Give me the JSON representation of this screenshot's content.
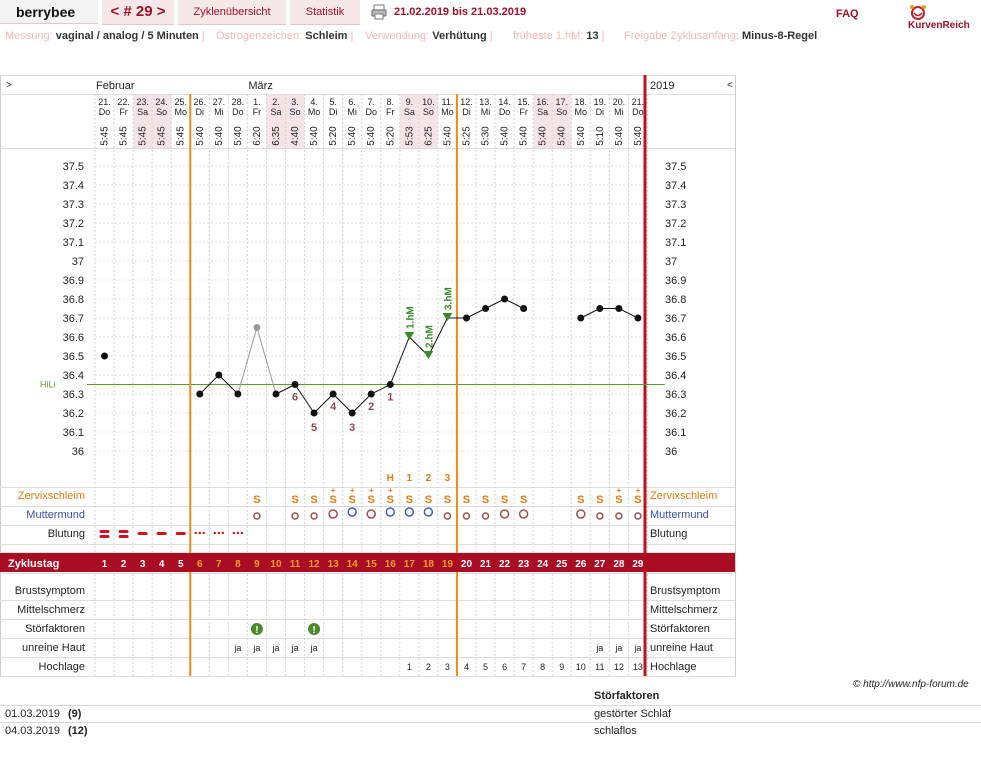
{
  "header": {
    "brand": "berrybee",
    "cycle_nav": "< # 29 >",
    "overview": "Zyklenübersicht",
    "statistics": "Statistik",
    "date_range": "21.02.2019 bis 21.03.2019",
    "faq": "FAQ",
    "logo_text": "KurvenReich"
  },
  "meta": [
    {
      "label": "Messung:",
      "value": "vaginal / analog / 5 Minuten"
    },
    {
      "label": "Östrogenzeichen:",
      "value": "Schleim"
    },
    {
      "label": "Verwendung:",
      "value": "Verhütung"
    },
    {
      "label": "früheste 1.hM:",
      "value": "13"
    },
    {
      "label": "Freigabe Zyklusanfang:",
      "value": "Minus-8-Regel"
    }
  ],
  "nav": {
    "left": ">",
    "right": "<",
    "year": "2019"
  },
  "months": [
    {
      "label": "Februar",
      "day_index": 0
    },
    {
      "label": "März",
      "day_index": 8
    }
  ],
  "days": [
    {
      "date": "21.",
      "wd": "Do",
      "time": "5:45",
      "cd": "1",
      "weekend": false
    },
    {
      "date": "22.",
      "wd": "Fr",
      "time": "5:45",
      "cd": "2",
      "weekend": false
    },
    {
      "date": "23.",
      "wd": "Sa",
      "time": "5:45",
      "cd": "3",
      "weekend": true
    },
    {
      "date": "24.",
      "wd": "So",
      "time": "5:45",
      "cd": "4",
      "weekend": true
    },
    {
      "date": "25.",
      "wd": "Mo",
      "time": "5:45",
      "cd": "5",
      "weekend": false
    },
    {
      "date": "26.",
      "wd": "Di",
      "time": "5:40",
      "cd": "6",
      "weekend": false
    },
    {
      "date": "27.",
      "wd": "Mi",
      "time": "5:40",
      "cd": "7",
      "weekend": false
    },
    {
      "date": "28.",
      "wd": "Do",
      "time": "5:40",
      "cd": "8",
      "weekend": false
    },
    {
      "date": "1.",
      "wd": "Fr",
      "time": "6:20",
      "cd": "9",
      "weekend": false
    },
    {
      "date": "2.",
      "wd": "Sa",
      "time": "6:35",
      "cd": "10",
      "weekend": true
    },
    {
      "date": "3.",
      "wd": "So",
      "time": "4:40",
      "cd": "11",
      "weekend": true
    },
    {
      "date": "4.",
      "wd": "Mo",
      "time": "5:40",
      "cd": "12",
      "weekend": false
    },
    {
      "date": "5.",
      "wd": "Di",
      "time": "5:20",
      "cd": "13",
      "weekend": false
    },
    {
      "date": "6.",
      "wd": "Mi",
      "time": "5:40",
      "cd": "14",
      "weekend": false
    },
    {
      "date": "7.",
      "wd": "Do",
      "time": "5:40",
      "cd": "15",
      "weekend": false
    },
    {
      "date": "8.",
      "wd": "Fr",
      "time": "5:20",
      "cd": "16",
      "weekend": false
    },
    {
      "date": "9.",
      "wd": "Sa",
      "time": "5:53",
      "cd": "17",
      "weekend": true
    },
    {
      "date": "10.",
      "wd": "So",
      "time": "6:25",
      "cd": "18",
      "weekend": true
    },
    {
      "date": "11.",
      "wd": "Mo",
      "time": "5:40",
      "cd": "19",
      "weekend": false
    },
    {
      "date": "12.",
      "wd": "Di",
      "time": "5:25",
      "cd": "20",
      "weekend": false
    },
    {
      "date": "13.",
      "wd": "Mi",
      "time": "5:30",
      "cd": "21",
      "weekend": false
    },
    {
      "date": "14.",
      "wd": "Do",
      "time": "5:40",
      "cd": "22",
      "weekend": false
    },
    {
      "date": "15.",
      "wd": "Fr",
      "time": "5:40",
      "cd": "23",
      "weekend": false
    },
    {
      "date": "16.",
      "wd": "Sa",
      "time": "5:40",
      "cd": "24",
      "weekend": true
    },
    {
      "date": "17.",
      "wd": "So",
      "time": "5:40",
      "cd": "25",
      "weekend": true
    },
    {
      "date": "18.",
      "wd": "Mo",
      "time": "5:40",
      "cd": "26",
      "weekend": false
    },
    {
      "date": "19.",
      "wd": "Di",
      "time": "5:10",
      "cd": "27",
      "weekend": false
    },
    {
      "date": "20.",
      "wd": "Mi",
      "time": "5:40",
      "cd": "28",
      "weekend": false
    },
    {
      "date": "21.",
      "wd": "Do",
      "time": "5:40",
      "cd": "29",
      "weekend": false
    }
  ],
  "chart_data": {
    "type": "line",
    "title": "",
    "xlabel": "",
    "ylabel": "",
    "ylim": [
      36.0,
      37.5
    ],
    "yticks": [
      "37.5",
      "37.4",
      "37.3",
      "37.2",
      "37.1",
      "37",
      "36.9",
      "36.8",
      "36.7",
      "36.6",
      "36.5",
      "36.4",
      "36.3",
      "36.2",
      "36.1",
      "36"
    ],
    "baseline_label": "HiLi",
    "baseline_value": 36.35,
    "grid": true,
    "series": [
      {
        "values": [
          36.5,
          null,
          null,
          null,
          null,
          36.3,
          36.4,
          36.3,
          36.65,
          36.3,
          36.35,
          36.2,
          36.3,
          36.2,
          36.3,
          36.35,
          36.6,
          36.5,
          36.7,
          36.7,
          36.75,
          36.8,
          36.75,
          null,
          null,
          36.7,
          36.75,
          36.75,
          36.7
        ]
      }
    ],
    "excluded_days": [
      8
    ],
    "low_labels": [
      {
        "day": 10,
        "label": "6"
      },
      {
        "day": 11,
        "label": "5"
      },
      {
        "day": 12,
        "label": "4"
      },
      {
        "day": 13,
        "label": "3"
      },
      {
        "day": 14,
        "label": "2"
      },
      {
        "day": 15,
        "label": "1"
      }
    ],
    "high_labels": [
      {
        "day": 16,
        "label": "1.hM"
      },
      {
        "day": 17,
        "label": "2.hM"
      },
      {
        "day": 18,
        "label": "3.hM"
      }
    ],
    "mucus_peak_labels": [
      {
        "day": 15,
        "label": "H"
      },
      {
        "day": 16,
        "label": "1"
      },
      {
        "day": 17,
        "label": "2"
      },
      {
        "day": 18,
        "label": "3"
      }
    ],
    "vertical_lines": [
      {
        "after_day": 4,
        "label": "fertile-start"
      },
      {
        "after_day": 18,
        "label": "fertile-end"
      }
    ]
  },
  "rows": {
    "zervix": "Zervixschleim",
    "muttermund": "Muttermund",
    "blutung": "Blutung",
    "zyklustag": "Zyklustag",
    "brust": "Brustsymptom",
    "mittel": "Mittelschmerz",
    "stoer": "Störfaktoren",
    "haut": "unreine Haut",
    "hoch": "Hochlage"
  },
  "zervix_marks": [
    "",
    "",
    "",
    "",
    "",
    "",
    "",
    "",
    "S",
    "",
    "S",
    "S",
    "S+",
    "S+",
    "S+",
    "S+",
    "S",
    "S",
    "S",
    "S",
    "S",
    "S",
    "S",
    "",
    "",
    "S",
    "S",
    "S+",
    "S+"
  ],
  "muttermund_marks": [
    "",
    "",
    "",
    "",
    "",
    "",
    "",
    "",
    "low",
    "",
    "low",
    "low",
    "mid",
    "high",
    "mid",
    "high",
    "high",
    "high",
    "low",
    "low",
    "low",
    "mid",
    "mid",
    "",
    "",
    "mid",
    "low",
    "low",
    "low"
  ],
  "bleeding": [
    "heavy",
    "heavy",
    "medium",
    "medium",
    "medium",
    "spot",
    "spot",
    "spot",
    "",
    "",
    "",
    "",
    "",
    "",
    "",
    "",
    "",
    "",
    "",
    "",
    "",
    "",
    "",
    "",
    "",
    "",
    "",
    "",
    ""
  ],
  "stoer_marks": [
    "",
    "",
    "",
    "",
    "",
    "",
    "",
    "",
    "!",
    "",
    "",
    "!",
    "",
    "",
    "",
    "",
    "",
    "",
    "",
    "",
    "",
    "",
    "",
    "",
    "",
    "",
    "",
    "",
    ""
  ],
  "haut_marks": [
    "",
    "",
    "",
    "",
    "",
    "",
    "",
    "ja",
    "ja",
    "ja",
    "ja",
    "ja",
    "",
    "",
    "",
    "",
    "",
    "",
    "",
    "",
    "",
    "",
    "",
    "",
    "",
    "",
    "ja",
    "ja",
    "ja"
  ],
  "hochlage": [
    "",
    "",
    "",
    "",
    "",
    "",
    "",
    "",
    "",
    "",
    "",
    "",
    "",
    "",
    "",
    "",
    "1",
    "2",
    "3",
    "4",
    "5",
    "6",
    "7",
    "8",
    "9",
    "10",
    "11",
    "12",
    "13"
  ],
  "copyright": "© http://www.nfp-forum.de",
  "notes": {
    "header": "Störfaktoren",
    "items": [
      {
        "date": "01.03.2019",
        "cd": "(9)",
        "text": "gestörter Schlaf"
      },
      {
        "date": "04.03.2019",
        "cd": "(12)",
        "text": "schlaflos"
      }
    ]
  }
}
